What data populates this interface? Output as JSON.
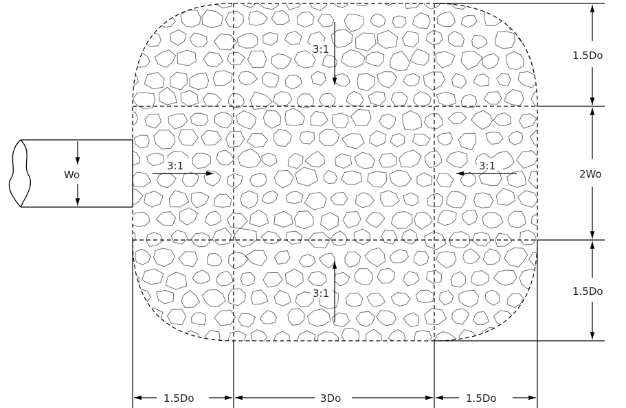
{
  "labels": {
    "outlet_width": "Wo",
    "slope_left": "3:1",
    "slope_right": "3:1",
    "slope_top": "3:1",
    "slope_bottom": "3:1",
    "dim_right_top": "1.5Do",
    "dim_right_middle": "2Wo",
    "dim_right_bottom": "1.5Do",
    "dim_bottom_left": "1.5Do",
    "dim_bottom_middle": "3Do",
    "dim_bottom_right": "1.5Do"
  },
  "colors": {
    "line": "#000000",
    "stone": "#6f6f6f",
    "text": "#222222"
  }
}
